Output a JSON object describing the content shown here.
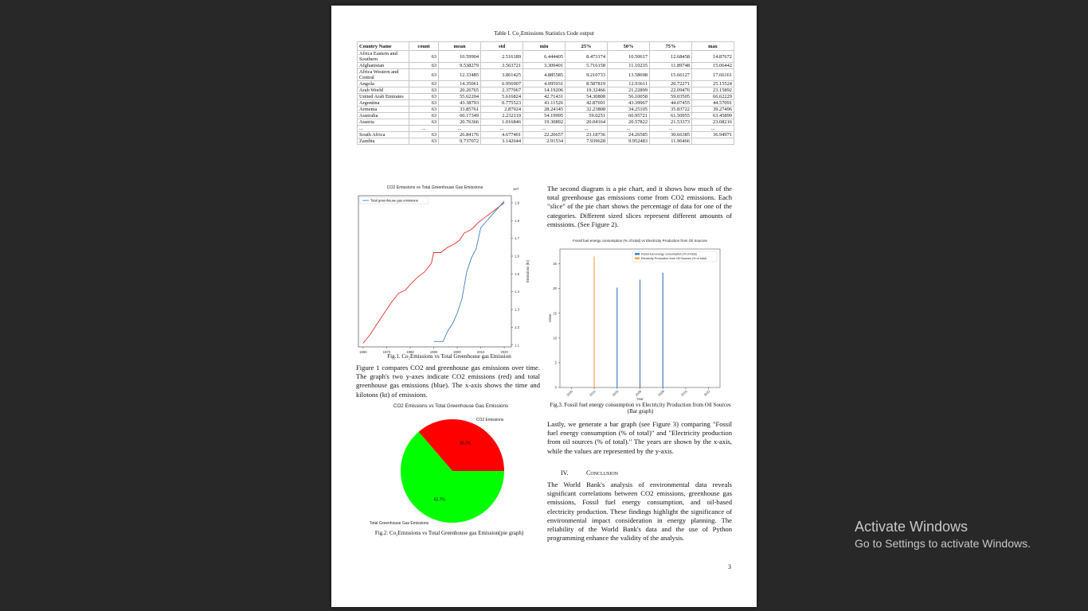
{
  "table": {
    "caption": "Table I. Co₂Emissions Statistics Code output",
    "headers": [
      "Country Name",
      "count",
      "mean",
      "std",
      "min",
      "25%",
      "50%",
      "75%",
      "max"
    ],
    "rows": [
      [
        "Africa Eastern and Southern",
        "63",
        "10.59904",
        "2.516189",
        "6.444405",
        "8.473174",
        "10.50617",
        "12.68458",
        "14.87672"
      ],
      [
        "Afghanistan",
        "63",
        "9.538279",
        "3.563721",
        "3.309401",
        "5.716158",
        "11.10235",
        "11.89748",
        "15.06442"
      ],
      [
        "Africa Western and Central",
        "63",
        "12.33485",
        "3.861425",
        "4.885585",
        "9.210733",
        "13.58698",
        "15.66127",
        "17.66161"
      ],
      [
        "Angola",
        "63",
        "14.35061",
        "6.956907",
        "4.095931",
        "8.587819",
        "12.93611",
        "20.72271",
        "25.15524"
      ],
      [
        "Arab World",
        "63",
        "20.26765",
        "2.377067",
        "14.19206",
        "19.32466",
        "21.22899",
        "22.09476",
        "23.15892"
      ],
      [
        "United Arab Emirates",
        "63",
        "55.62204",
        "5.616824",
        "42.71431",
        "54.30808",
        "56.10058",
        "59.03505",
        "66.62229"
      ],
      [
        "Argentina",
        "63",
        "43.38793",
        "0.775523",
        "41.11526",
        "42.87691",
        "43.39967",
        "44.07455",
        "44.57091"
      ],
      [
        "Armenia",
        "63",
        "33.85761",
        "2.87924",
        "28.24145",
        "32.23808",
        "34.25105",
        "35.83722",
        "39.27496"
      ],
      [
        "Australia",
        "63",
        "60.17349",
        "2.232119",
        "54.19995",
        "59.0251",
        "60.95721",
        "61.50955",
        "63.45899"
      ],
      [
        "Austria",
        "63",
        "20.76366",
        "1.016846",
        "19.30892",
        "20.04164",
        "20.57822",
        "21.53373",
        "23.08216"
      ],
      [
        "...",
        "...",
        "...",
        "...",
        "...",
        "...",
        "...",
        "...",
        "..."
      ],
      [
        "South Africa",
        "63",
        "26.84176",
        "4.677401",
        "22.20657",
        "23.18736",
        "24.26585",
        "30.66385",
        "36.94971"
      ],
      [
        "Zambia",
        "63",
        "9.737072",
        "3.142644",
        "2.91534",
        "7.939628",
        "9.952483",
        "11.96466",
        ""
      ]
    ]
  },
  "chart_data": [
    {
      "type": "line",
      "title": "CO2 Emissions vs Total Greenhouse Gas Emissions",
      "xlabel": "",
      "y2label": "Emissions (kt)",
      "y2_scale_label": "1e7",
      "legend": [
        "Total greenhouse gas emissions"
      ],
      "x_ticks": [
        "1960",
        "1970",
        "1980",
        "1990",
        "2000",
        "2010",
        "2020"
      ],
      "y2_ticks": [
        "1.1",
        "1.2",
        "1.3",
        "1.4",
        "1.5",
        "1.6",
        "1.7",
        "1.8",
        "1.9"
      ],
      "xlim": [
        1958,
        2023
      ],
      "y2lim": [
        1.09,
        1.94
      ],
      "series": [
        {
          "name": "CO2 emissions",
          "color": "#e8302d",
          "axis": "left",
          "x": [
            1960,
            1963,
            1966,
            1969,
            1972,
            1975,
            1978,
            1980,
            1983,
            1986,
            1989,
            1990,
            1993,
            1996,
            1999,
            2001,
            2003,
            2006,
            2009,
            2012,
            2015,
            2018,
            2020
          ],
          "y": [
            1.11,
            1.16,
            1.22,
            1.28,
            1.34,
            1.39,
            1.41,
            1.44,
            1.48,
            1.51,
            1.56,
            1.62,
            1.62,
            1.65,
            1.67,
            1.69,
            1.73,
            1.75,
            1.79,
            1.82,
            1.85,
            1.88,
            1.9
          ]
        },
        {
          "name": "Total greenhouse gas emissions",
          "color": "#3e7fc1",
          "axis": "right",
          "x": [
            1990,
            1992,
            1994,
            1996,
            1998,
            2000,
            2002,
            2004,
            2006,
            2008,
            2010,
            2012,
            2014,
            2016,
            2018,
            2020
          ],
          "y": [
            1.12,
            1.12,
            1.12,
            1.18,
            1.22,
            1.28,
            1.36,
            1.51,
            1.59,
            1.64,
            1.76,
            1.79,
            1.82,
            1.85,
            1.88,
            1.91
          ]
        }
      ]
    },
    {
      "type": "pie",
      "title": "CO2 Emissions vs Total Greenhouse Gas Emissions",
      "labels": [
        "CO2 Emissions",
        "Total Greenhouse Gas Emissions"
      ],
      "values": [
        36.3,
        63.7
      ],
      "pct_labels": [
        "36.3%",
        "63.7%"
      ],
      "colors": [
        "#ff0000",
        "#00ff00"
      ]
    },
    {
      "type": "bar",
      "title": "Fossil fuel energy consumption (% of total) vs Electricity Production from Oil Sources",
      "xlabel": "Year",
      "ylabel": "Value",
      "x_ticks": [
        "2000",
        "2010",
        "2005",
        "2006",
        "2008",
        "2015",
        "2022"
      ],
      "y_ticks": [
        "0",
        "5",
        "10",
        "15",
        "20",
        "25"
      ],
      "ylim": [
        0,
        28
      ],
      "legend": [
        "Fossil fuel energy consumption (% of total)",
        "Electricity Production from Oil Sources (% of total)"
      ],
      "bars": [
        {
          "series": "Electricity Production from Oil Sources (% of total)",
          "value": 26.5,
          "color": "#ff9e4a"
        },
        {
          "series": "Fossil fuel energy consumption (% of total)",
          "value": 20.2,
          "color": "#3e7fc1"
        },
        {
          "series": "Fossil fuel energy consumption (% of total)",
          "value": 21.8,
          "color": "#3e7fc1"
        },
        {
          "series": "Fossil fuel energy consumption (% of total)",
          "value": 23.2,
          "color": "#3e7fc1"
        }
      ]
    }
  ],
  "text": {
    "fig1_caption": "Fig.1. Co₂Emissions vs Total Greenhouse gas Emission",
    "fig1_para": "Figure 1 compares CO2 and greenhouse gas emissions over time. The graph's two y-axes indicate CO2 emissions (red) and total greenhouse gas emissions (blue). The x-axis shows the time and kilotons (kt) of emissions.",
    "fig2_caption": "Fig.2. Co₂Emissions vs Total Greenhouse gas Emission(pie graph)",
    "pie_para": "The second diagram is a pie chart, and it shows how much of the total greenhouse gas emissions come from CO2 emissions. Each \"slice\" of the pie chart shows the percentage of data for one of the categories. Different sized slices represent different amounts of emissions. (See Figure 2).",
    "fig3_caption": "Fig.3. Fossil fuel energy consumption vs Electricity Production from Oil Sources (Bar graph)",
    "bar_para": "Lastly, we generate a bar graph (see Figure 3) comparing \"Fossil fuel energy consumption (% of total)\" and \"Electricity production from oil sources (% of total).\" The years are shown by the x-axis, while the values are represented by the y-axis.",
    "section_num": "IV.",
    "section_title": "Conclusion",
    "conclusion_para": "The World Bank's analysis of environmental data reveals significant correlations between CO2 emissions, greenhouse gas emissions, Fossil fuel energy consumption, and oil-based electricity production. These findings highlight the significance of environmental impact consideration in energy planning. The reliability of the World Bank's data and the use of Python programming enhance the validity of the analysis.",
    "page_number": "3"
  },
  "watermark": {
    "title": "Activate Windows",
    "subtitle": "Go to Settings to activate Windows."
  }
}
